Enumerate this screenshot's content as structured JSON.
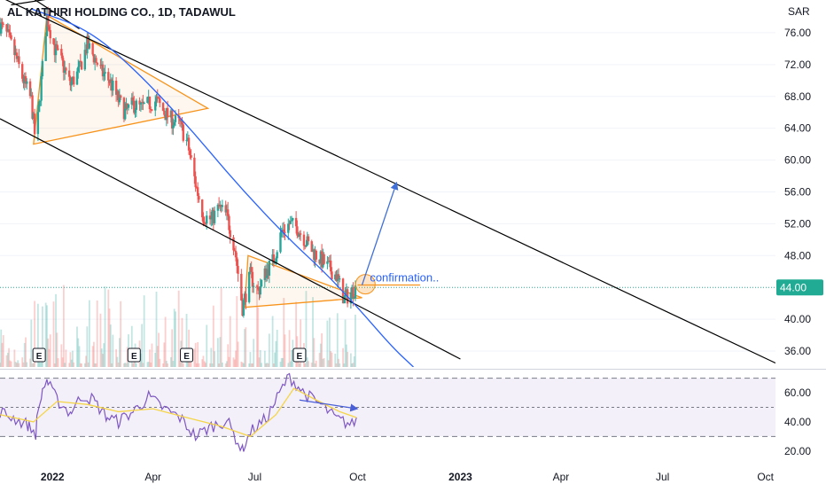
{
  "header": {
    "title": "AL KATHIRI HOLDING CO., 1D, TADAWUL",
    "currency": "SAR"
  },
  "price_badge": "44.00",
  "annotation_text": "confirmation..",
  "earnings_label": "E",
  "colors": {
    "up": "#26a69a",
    "down": "#ef5350",
    "trendline": "#000000",
    "triangle": "#f7931a",
    "curve": "#2962ff",
    "rsi": "#7e57c2",
    "rsi_ma": "#f5d547",
    "badge": "#22ab94"
  },
  "chart_data": [
    {
      "type": "candlestick",
      "title": "AL KATHIRI HOLDING CO., 1D, TADAWUL",
      "ylim": [
        34,
        79
      ],
      "x_range": [
        "2021-11-15",
        "2023-10-10"
      ],
      "y_ticks": [
        "76.00",
        "72.00",
        "68.00",
        "64.00",
        "60.00",
        "56.00",
        "52.00",
        "48.00",
        "40.00",
        "36.00"
      ],
      "x_ticks": [
        {
          "date": "2022-01-01",
          "label": "2022"
        },
        {
          "date": "2022-04-01",
          "label": "Apr"
        },
        {
          "date": "2022-07-01",
          "label": "Jul"
        },
        {
          "date": "2022-10-01",
          "label": "Oct"
        },
        {
          "date": "2023-01-01",
          "label": "2023"
        },
        {
          "date": "2023-04-01",
          "label": "Apr"
        },
        {
          "date": "2023-07-01",
          "label": "Jul"
        },
        {
          "date": "2023-10-01",
          "label": "Oct"
        }
      ],
      "last_price": 44.0,
      "price_path": [
        [
          "2021-11-15",
          77.0
        ],
        [
          "2021-11-22",
          75.5
        ],
        [
          "2021-11-29",
          73.0
        ],
        [
          "2021-12-06",
          70.0
        ],
        [
          "2021-12-13",
          67.5
        ],
        [
          "2021-12-17",
          62.0
        ],
        [
          "2021-12-22",
          70.0
        ],
        [
          "2021-12-27",
          78.0
        ],
        [
          "2022-01-03",
          74.0
        ],
        [
          "2022-01-10",
          72.0
        ],
        [
          "2022-01-17",
          69.5
        ],
        [
          "2022-01-24",
          71.0
        ],
        [
          "2022-02-01",
          74.5
        ],
        [
          "2022-02-07",
          73.0
        ],
        [
          "2022-02-14",
          71.0
        ],
        [
          "2022-02-21",
          70.0
        ],
        [
          "2022-03-01",
          67.5
        ],
        [
          "2022-03-07",
          66.0
        ],
        [
          "2022-03-14",
          67.0
        ],
        [
          "2022-03-21",
          66.5
        ],
        [
          "2022-03-28",
          67.0
        ],
        [
          "2022-04-04",
          67.5
        ],
        [
          "2022-04-11",
          66.0
        ],
        [
          "2022-04-18",
          65.0
        ],
        [
          "2022-04-25",
          64.5
        ],
        [
          "2022-05-02",
          62.0
        ],
        [
          "2022-05-09",
          57.0
        ],
        [
          "2022-05-16",
          53.0
        ],
        [
          "2022-05-23",
          52.5
        ],
        [
          "2022-05-30",
          54.0
        ],
        [
          "2022-06-06",
          53.0
        ],
        [
          "2022-06-13",
          49.0
        ],
        [
          "2022-06-20",
          41.5
        ],
        [
          "2022-06-27",
          45.5
        ],
        [
          "2022-07-04",
          43.5
        ],
        [
          "2022-07-11",
          46.0
        ],
        [
          "2022-07-18",
          47.5
        ],
        [
          "2022-07-25",
          51.0
        ],
        [
          "2022-08-01",
          52.0
        ],
        [
          "2022-08-08",
          51.5
        ],
        [
          "2022-08-15",
          50.0
        ],
        [
          "2022-08-22",
          48.5
        ],
        [
          "2022-08-29",
          47.5
        ],
        [
          "2022-09-05",
          46.5
        ],
        [
          "2022-09-12",
          45.5
        ],
        [
          "2022-09-19",
          42.5
        ],
        [
          "2022-09-26",
          43.5
        ],
        [
          "2022-09-30",
          44.0
        ]
      ],
      "trendlines": [
        {
          "kind": "channel-upper",
          "from": [
            "2021-11-15",
            80.5
          ],
          "to": [
            "2023-10-10",
            34.5
          ]
        },
        {
          "kind": "channel-lower",
          "from": [
            "2021-11-15",
            65.2
          ],
          "to": [
            "2023-01-01",
            35.0
          ]
        },
        {
          "kind": "triangle-1",
          "points": [
            [
              "2021-12-15",
              62.0
            ],
            [
              "2021-12-27",
              78.2
            ],
            [
              "2022-05-20",
              66.5
            ]
          ]
        },
        {
          "kind": "triangle-2",
          "points": [
            [
              "2022-06-22",
              41.5
            ],
            [
              "2022-06-25",
              48.0
            ],
            [
              "2022-10-05",
              42.7
            ]
          ]
        },
        {
          "kind": "breakout-level",
          "from": [
            "2022-10-01",
            44.3
          ],
          "to": [
            "2022-11-26",
            44.3
          ]
        },
        {
          "kind": "projection-arrow",
          "from": [
            "2022-10-05",
            44.3
          ],
          "to": [
            "2022-11-05",
            57.2
          ]
        }
      ],
      "curve": [
        [
          "2021-12-13",
          79.0
        ],
        [
          "2022-02-01",
          76.5
        ],
        [
          "2022-03-15",
          71.5
        ],
        [
          "2022-05-01",
          64.5
        ],
        [
          "2022-06-15",
          57.0
        ],
        [
          "2022-08-01",
          50.0
        ],
        [
          "2022-09-01",
          46.0
        ],
        [
          "2022-10-01",
          41.5
        ],
        [
          "2022-11-01",
          36.5
        ],
        [
          "2022-11-20",
          34.0
        ]
      ],
      "earnings_dates": [
        "2021-12-20",
        "2022-03-15",
        "2022-05-01",
        "2022-08-10"
      ]
    },
    {
      "type": "line",
      "name": "RSI",
      "ylim": [
        12,
        74
      ],
      "y_ticks": [
        "60.00",
        "40.00",
        "20.00"
      ],
      "bands": [
        70,
        50,
        30
      ],
      "values_path": [
        [
          "2021-11-15",
          47
        ],
        [
          "2021-11-29",
          42
        ],
        [
          "2021-12-10",
          38
        ],
        [
          "2021-12-17",
          32
        ],
        [
          "2021-12-22",
          58
        ],
        [
          "2021-12-27",
          69
        ],
        [
          "2022-01-05",
          55
        ],
        [
          "2022-01-17",
          46
        ],
        [
          "2022-01-28",
          58
        ],
        [
          "2022-02-07",
          55
        ],
        [
          "2022-02-18",
          44
        ],
        [
          "2022-03-01",
          40
        ],
        [
          "2022-03-14",
          47
        ],
        [
          "2022-03-28",
          57
        ],
        [
          "2022-04-11",
          49
        ],
        [
          "2022-04-25",
          43
        ],
        [
          "2022-05-09",
          30
        ],
        [
          "2022-05-23",
          37
        ],
        [
          "2022-06-06",
          41
        ],
        [
          "2022-06-20",
          20
        ],
        [
          "2022-06-27",
          33
        ],
        [
          "2022-07-11",
          42
        ],
        [
          "2022-07-25",
          62
        ],
        [
          "2022-08-01",
          71
        ],
        [
          "2022-08-15",
          59
        ],
        [
          "2022-08-29",
          52
        ],
        [
          "2022-09-12",
          42
        ],
        [
          "2022-09-26",
          38
        ],
        [
          "2022-09-30",
          43
        ]
      ],
      "ma_path": [
        [
          "2021-11-15",
          45
        ],
        [
          "2021-12-15",
          40
        ],
        [
          "2022-01-05",
          54
        ],
        [
          "2022-02-01",
          52
        ],
        [
          "2022-03-01",
          47
        ],
        [
          "2022-04-01",
          49
        ],
        [
          "2022-05-01",
          43
        ],
        [
          "2022-06-01",
          37
        ],
        [
          "2022-06-27",
          30
        ],
        [
          "2022-07-20",
          45
        ],
        [
          "2022-08-05",
          63
        ],
        [
          "2022-08-25",
          55
        ],
        [
          "2022-09-15",
          47
        ],
        [
          "2022-09-30",
          43
        ]
      ],
      "divergence_arrow": {
        "from": [
          "2022-08-10",
          55
        ],
        "to": [
          "2022-10-01",
          49
        ]
      }
    }
  ]
}
